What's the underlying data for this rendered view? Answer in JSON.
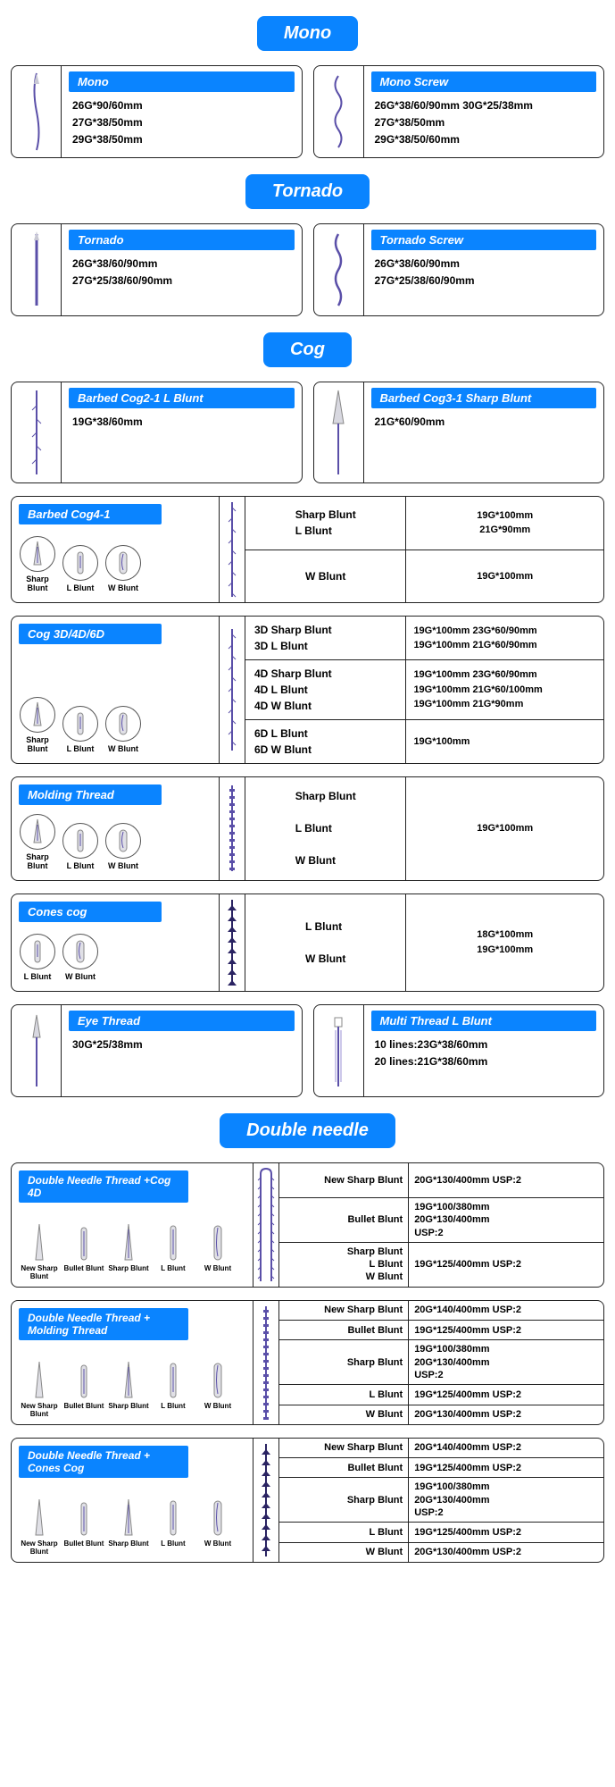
{
  "colors": {
    "accent": "#0a84ff",
    "border": "#222222",
    "thread": "#5a4fa8"
  },
  "sections": {
    "mono": {
      "header": "Mono",
      "cards": [
        {
          "title": "Mono",
          "specs": [
            "26G*90/60mm",
            "27G*38/50mm",
            "29G*38/50mm"
          ]
        },
        {
          "title": "Mono Screw",
          "specs": [
            "26G*38/60/90mm 30G*25/38mm",
            "27G*38/50mm",
            "29G*38/50/60mm"
          ]
        }
      ]
    },
    "tornado": {
      "header": "Tornado",
      "cards": [
        {
          "title": "Tornado",
          "specs": [
            "26G*38/60/90mm",
            "27G*25/38/60/90mm"
          ]
        },
        {
          "title": "Tornado Screw",
          "specs": [
            "26G*38/60/90mm",
            "27G*25/38/60/90mm"
          ]
        }
      ]
    },
    "cog": {
      "header": "Cog",
      "simpleCards": [
        {
          "title": "Barbed Cog2-1 L Blunt",
          "specs": [
            "19G*38/60mm"
          ]
        },
        {
          "title": "Barbed Cog3-1 Sharp Blunt",
          "specs": [
            "21G*60/90mm"
          ]
        }
      ],
      "wide": [
        {
          "title": "Barbed Cog4-1",
          "needles": [
            "Sharp Blunt",
            "L Blunt",
            "W Blunt"
          ],
          "rows": [
            {
              "type": "Sharp Blunt\nL Blunt",
              "spec": "19G*100mm\n21G*90mm",
              "center": true
            },
            {
              "type": "W Blunt",
              "spec": "19G*100mm",
              "center": true
            }
          ]
        },
        {
          "title": "Cog 3D/4D/6D",
          "needles": [
            "Sharp Blunt",
            "L Blunt",
            "W Blunt"
          ],
          "rows": [
            {
              "type": "3D Sharp Blunt\n3D L Blunt",
              "spec": "19G*100mm 23G*60/90mm\n19G*100mm 21G*60/90mm"
            },
            {
              "type": "4D Sharp Blunt\n4D L Blunt\n4D W Blunt",
              "spec": "19G*100mm 23G*60/90mm\n19G*100mm 21G*60/100mm\n19G*100mm 21G*90mm"
            },
            {
              "type": "6D L Blunt\n6D W Blunt",
              "spec": "19G*100mm"
            }
          ]
        },
        {
          "title": "Molding Thread",
          "needles": [
            "Sharp Blunt",
            "L Blunt",
            "W Blunt"
          ],
          "rows": [
            {
              "type": "Sharp Blunt\n\nL Blunt\n\nW Blunt",
              "spec": "19G*100mm",
              "center": true
            }
          ]
        },
        {
          "title": "Cones cog",
          "needles": [
            "L Blunt",
            "W Blunt"
          ],
          "rows": [
            {
              "type": "L Blunt\n\nW Blunt",
              "spec": "18G*100mm\n19G*100mm",
              "center": true
            }
          ]
        }
      ],
      "bottomCards": [
        {
          "title": "Eye Thread",
          "specs": [
            "30G*25/38mm"
          ]
        },
        {
          "title": "Multi Thread L Blunt",
          "specs": [
            "10 lines:23G*38/60mm",
            "20 lines:21G*38/60mm"
          ]
        }
      ]
    },
    "double": {
      "header": "Double needle",
      "items": [
        {
          "title": "Double Needle Thread +Cog 4D",
          "needles": [
            "New Sharp Blunt",
            "Bullet Blunt",
            "Sharp Blunt",
            "L Blunt",
            "W Blunt"
          ],
          "rows": [
            {
              "type": "New Sharp Blunt",
              "spec": "20G*130/400mm USP:2"
            },
            {
              "type": "Bullet Blunt",
              "spec": "19G*100/380mm\n20G*130/400mm\nUSP:2"
            },
            {
              "type": "Sharp Blunt\nL Blunt\nW Blunt",
              "spec": "19G*125/400mm USP:2"
            }
          ]
        },
        {
          "title": "Double Needle Thread + Molding Thread",
          "needles": [
            "New Sharp Blunt",
            "Bullet Blunt",
            "Sharp Blunt",
            "L Blunt",
            "W Blunt"
          ],
          "rows": [
            {
              "type": "New Sharp Blunt",
              "spec": "20G*140/400mm USP:2"
            },
            {
              "type": "Bullet Blunt",
              "spec": "19G*125/400mm USP:2"
            },
            {
              "type": "Sharp Blunt",
              "spec": "19G*100/380mm\n20G*130/400mm\nUSP:2"
            },
            {
              "type": "L Blunt",
              "spec": "19G*125/400mm USP:2"
            },
            {
              "type": "W Blunt",
              "spec": "20G*130/400mm USP:2"
            }
          ]
        },
        {
          "title": "Double Needle Thread + Cones Cog",
          "needles": [
            "New Sharp Blunt",
            "Bullet Blunt",
            "Sharp Blunt",
            "L Blunt",
            "W Blunt"
          ],
          "rows": [
            {
              "type": "New Sharp Blunt",
              "spec": "20G*140/400mm USP:2"
            },
            {
              "type": "Bullet Blunt",
              "spec": "19G*125/400mm USP:2"
            },
            {
              "type": "Sharp Blunt",
              "spec": "19G*100/380mm\n20G*130/400mm\nUSP:2"
            },
            {
              "type": "L Blunt",
              "spec": "19G*125/400mm USP:2"
            },
            {
              "type": "W Blunt",
              "spec": "20G*130/400mm USP:2"
            }
          ]
        }
      ]
    }
  }
}
